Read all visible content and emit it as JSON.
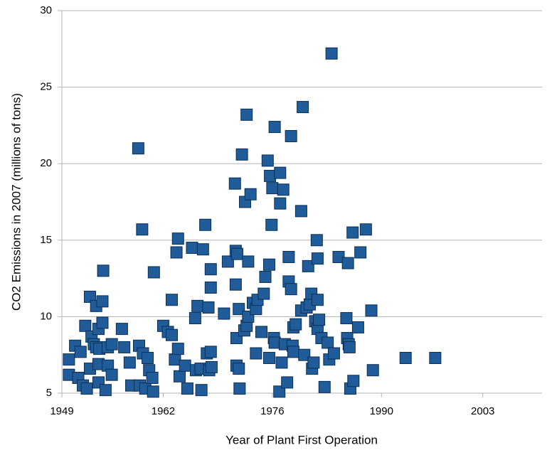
{
  "chart_data": {
    "type": "scatter",
    "x_label": "Year of Plant First Operation",
    "y_label": "CO2 Emissions in 2007 (millions of tons)",
    "color": "#1f5c99",
    "grid": true,
    "xlim": [
      1949,
      2010.6
    ],
    "xticks": [
      1949,
      1962,
      1976,
      1990,
      2003
    ],
    "ylim": [
      5,
      30
    ],
    "yticks": [
      5,
      10,
      15,
      20,
      25,
      30
    ],
    "x": [
      1949.9,
      1949.9,
      1950.7,
      1951.1,
      1951.4,
      1951.7,
      1952.0,
      1952.2,
      1952.6,
      1952.6,
      1952.8,
      1953.1,
      1953.4,
      1953.4,
      1953.7,
      1953.7,
      1953.7,
      1953.8,
      1954.2,
      1954.2,
      1954.3,
      1954.6,
      1954.9,
      1954.9,
      1955.4,
      1955.4,
      1956.7,
      1957.0,
      1957.7,
      1957.9,
      1958.8,
      1958.9,
      1959.0,
      1959.3,
      1959.4,
      1959.7,
      1960.0,
      1960.2,
      1960.6,
      1960.7,
      1960.8,
      1962.0,
      1962.6,
      1963.1,
      1963.1,
      1963.5,
      1963.7,
      1963.9,
      1963.9,
      1964.1,
      1964.8,
      1965.1,
      1965.7,
      1966.1,
      1966.2,
      1966.4,
      1966.8,
      1966.9,
      1967.1,
      1967.4,
      1967.6,
      1967.8,
      1967.9,
      1968.1,
      1968.1,
      1968.1,
      1968.2,
      1969.8,
      1970.3,
      1971.2,
      1971.3,
      1971.3,
      1971.4,
      1971.4,
      1971.5,
      1971.7,
      1971.7,
      1971.8,
      1972.1,
      1972.4,
      1972.5,
      1972.7,
      1972.7,
      1972.9,
      1972.9,
      1973.2,
      1973.5,
      1973.9,
      1973.9,
      1974.1,
      1974.6,
      1974.9,
      1975.1,
      1975.4,
      1975.6,
      1975.6,
      1975.7,
      1975.9,
      1976.0,
      1976.2,
      1976.3,
      1976.3,
      1976.9,
      1977.0,
      1977.0,
      1977.2,
      1977.4,
      1977.6,
      1977.9,
      1978.1,
      1978.1,
      1978.4,
      1978.4,
      1978.6,
      1978.7,
      1978.7,
      1979.0,
      1979.7,
      1979.7,
      1979.9,
      1980.1,
      1980.4,
      1980.6,
      1980.8,
      1981.0,
      1981.1,
      1981.3,
      1981.5,
      1981.7,
      1981.8,
      1981.8,
      1981.8,
      1982.0,
      1982.3,
      1982.7,
      1983.1,
      1983.3,
      1983.6,
      1983.9,
      1984.5,
      1985.5,
      1985.6,
      1985.7,
      1985.8,
      1985.9,
      1986.0,
      1986.3,
      1986.4,
      1987.0,
      1987.3,
      1988.0,
      1988.7,
      1988.9,
      1993.1,
      1996.9
    ],
    "values": [
      7.2,
      6.2,
      8.1,
      6.0,
      7.7,
      5.5,
      9.4,
      5.3,
      11.3,
      6.6,
      8.7,
      8.2,
      10.7,
      8.0,
      9.2,
      6.9,
      5.7,
      7.9,
      11.0,
      9.6,
      13.0,
      5.2,
      8.0,
      6.8,
      8.2,
      6.2,
      9.2,
      8.0,
      7.0,
      5.5,
      21.0,
      8.1,
      5.5,
      15.7,
      7.6,
      5.3,
      7.3,
      6.5,
      6.0,
      5.1,
      12.9,
      9.4,
      9.0,
      11.1,
      8.8,
      7.2,
      14.2,
      15.1,
      7.9,
      6.1,
      6.8,
      5.3,
      14.5,
      9.9,
      6.5,
      10.7,
      6.6,
      5.2,
      14.4,
      16.0,
      7.6,
      10.6,
      6.5,
      13.1,
      11.9,
      7.7,
      6.7,
      10.2,
      13.6,
      18.7,
      14.3,
      12.1,
      8.6,
      6.8,
      14.1,
      10.5,
      6.6,
      5.3,
      20.6,
      9.1,
      17.5,
      23.2,
      9.4,
      13.6,
      10.0,
      18.0,
      10.9,
      7.6,
      10.5,
      11.1,
      9.0,
      11.5,
      12.6,
      20.2,
      13.4,
      7.3,
      19.2,
      16.0,
      18.4,
      8.6,
      22.4,
      8.3,
      5.1,
      19.4,
      17.4,
      7.0,
      18.3,
      8.2,
      5.7,
      13.9,
      12.3,
      21.8,
      11.8,
      8.1,
      9.3,
      7.7,
      9.5,
      10.4,
      16.9,
      23.7,
      7.5,
      10.6,
      13.3,
      10.8,
      11.5,
      6.6,
      7.0,
      9.7,
      15.0,
      13.8,
      9.2,
      11.1,
      9.8,
      8.6,
      5.4,
      8.3,
      7.2,
      27.2,
      7.6,
      13.9,
      9.9,
      8.6,
      13.5,
      8.2,
      8.0,
      5.3,
      15.5,
      5.8,
      9.3,
      14.2,
      15.7,
      10.4,
      6.5,
      7.3,
      7.3
    ]
  }
}
